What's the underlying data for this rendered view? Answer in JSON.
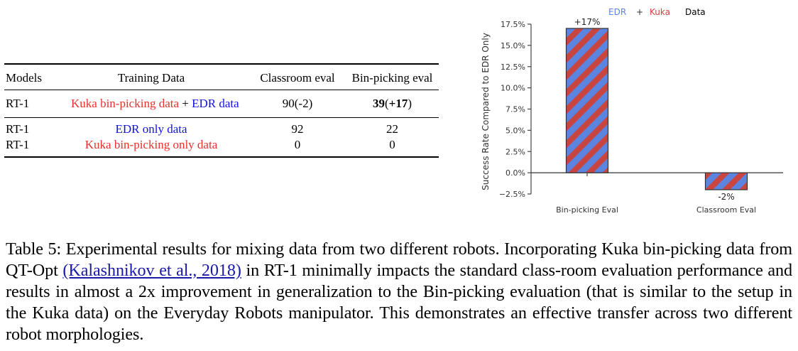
{
  "table": {
    "headers": [
      "Models",
      "Training Data",
      "Classroom eval",
      "Bin-picking eval"
    ],
    "rows": [
      {
        "model": "RT-1",
        "training_parts": [
          {
            "text": "Kuka bin-picking data",
            "color": "#e8302b"
          },
          {
            "text": " + ",
            "color": "#000000"
          },
          {
            "text": "EDR data",
            "color": "#1212e6"
          }
        ],
        "classroom": "90(-2)",
        "binpicking_bold": "39",
        "binpicking_rest": "(+17)"
      },
      {
        "model": "RT-1",
        "training_parts": [
          {
            "text": "EDR only data",
            "color": "#1212e6"
          }
        ],
        "classroom": "92",
        "binpicking": "22"
      },
      {
        "model": "RT-1",
        "training_parts": [
          {
            "text": "Kuka bin-picking only data",
            "color": "#e8302b"
          }
        ],
        "classroom": "0",
        "binpicking": "0"
      }
    ]
  },
  "chart_data": {
    "type": "bar",
    "title_parts": [
      {
        "text": "EDR",
        "color": "#5b84e0"
      },
      {
        "text": "+",
        "color": "#333333"
      },
      {
        "text": "Kuka",
        "color": "#d04040"
      },
      {
        "text": "Data",
        "color": "#000000"
      }
    ],
    "categories": [
      "Bin-picking Eval",
      "Classroom Eval"
    ],
    "values": [
      17,
      -2
    ],
    "data_labels": [
      "+17%",
      "-2%"
    ],
    "ylabel": "Success Rate Compared to EDR Only",
    "xlabel": "",
    "ylim": [
      -2.5,
      17.5
    ],
    "yticks": [
      -2.5,
      0.0,
      2.5,
      5.0,
      7.5,
      10.0,
      12.5,
      15.0,
      17.5
    ],
    "ytick_labels": [
      "−2.5%",
      "0.0%",
      "2.5%",
      "5.0%",
      "7.5%",
      "10.0%",
      "12.5%",
      "15.0%",
      "17.5%"
    ],
    "hatch_colors": {
      "stripe_a": "#5b84e0",
      "stripe_b": "#c84540"
    },
    "grid": false,
    "legend": "none"
  },
  "caption": {
    "prefix": "Table 5: Experimental results for mixing data from two different robots. Incorporating Kuka bin-picking data from QT-Opt ",
    "citation": "(Kalashnikov et al., 2018)",
    "suffix": " in RT-1 minimally impacts the standard class-room evaluation performance and results in almost a 2x improvement in generalization to the Bin-picking evaluation (that is similar to the setup in the Kuka data) on the Everyday Robots manipulator. This demonstrates an effective transfer across two different robot morphologies."
  }
}
